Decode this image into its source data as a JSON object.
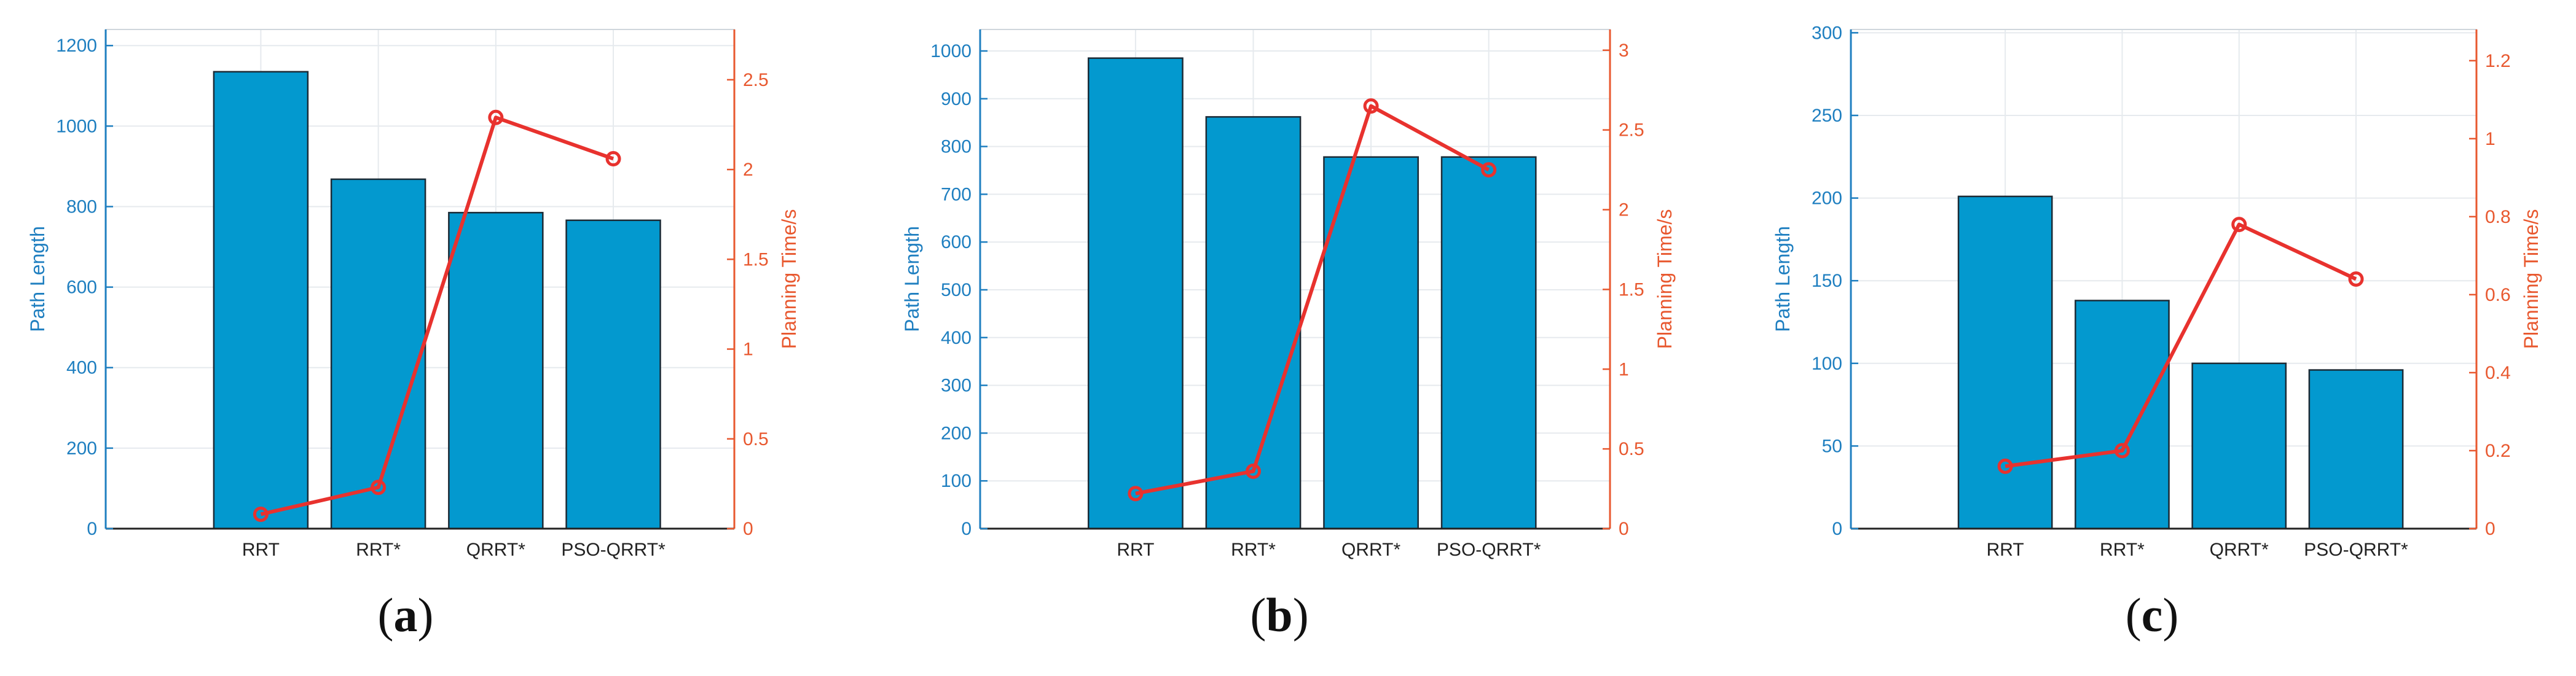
{
  "colors": {
    "bar_fill": "#0399cf",
    "bar_edge": "#1c2b36",
    "left_axis": "#1f7fc0",
    "right_axis": "#e8582f",
    "line": "#e8322e",
    "grid": "#e6eaee",
    "frame": "#222222"
  },
  "chart_data": [
    {
      "type": "bar",
      "panel_label": "a",
      "categories": [
        "RRT",
        "RRT*",
        "QRRT*",
        "PSO-QRRT*"
      ],
      "ylabel": "Path Length",
      "y2label": "Planning Time/s",
      "ylim": [
        0,
        1240
      ],
      "yticks": [
        0,
        200,
        400,
        600,
        800,
        1000,
        1200
      ],
      "y2lim": [
        0,
        2.78
      ],
      "y2ticks": [
        "0",
        "0.5",
        "1",
        "1.5",
        "2",
        "2.5"
      ],
      "y2tick_values": [
        0,
        0.5,
        1,
        1.5,
        2,
        2.5
      ],
      "series": [
        {
          "kind": "bar",
          "values": [
            1135,
            868,
            785,
            766
          ]
        },
        {
          "kind": "line",
          "axis": "right",
          "values": [
            0.08,
            0.23,
            2.29,
            2.06
          ]
        }
      ]
    },
    {
      "type": "bar",
      "panel_label": "b",
      "categories": [
        "RRT",
        "RRT*",
        "QRRT*",
        "PSO-QRRT*"
      ],
      "ylabel": "Path Length",
      "y2label": "Planning Time/s",
      "ylim": [
        0,
        1045
      ],
      "yticks": [
        0,
        100,
        200,
        300,
        400,
        500,
        600,
        700,
        800,
        900,
        1000
      ],
      "y2lim": [
        0,
        3.13
      ],
      "y2ticks": [
        "0",
        "0.5",
        "1",
        "1.5",
        "2",
        "2.5",
        "3"
      ],
      "y2tick_values": [
        0,
        0.5,
        1,
        1.5,
        2,
        2.5,
        3
      ],
      "series": [
        {
          "kind": "bar",
          "values": [
            985,
            862,
            778,
            778
          ]
        },
        {
          "kind": "line",
          "axis": "right",
          "values": [
            0.22,
            0.36,
            2.65,
            2.25
          ]
        }
      ]
    },
    {
      "type": "bar",
      "panel_label": "c",
      "categories": [
        "RRT",
        "RRT*",
        "QRRT*",
        "PSO-QRRT*"
      ],
      "ylabel": "Path Length",
      "y2label": "Planning Time/s",
      "ylim": [
        0,
        302
      ],
      "yticks": [
        0,
        50,
        100,
        150,
        200,
        250,
        300
      ],
      "y2lim": [
        0,
        1.28
      ],
      "y2ticks": [
        "0",
        "0.2",
        "0.4",
        "0.6",
        "0.8",
        "1",
        "1.2"
      ],
      "y2tick_values": [
        0,
        0.2,
        0.4,
        0.6,
        0.8,
        1.0,
        1.2
      ],
      "series": [
        {
          "kind": "bar",
          "values": [
            201,
            138,
            100,
            96
          ]
        },
        {
          "kind": "line",
          "axis": "right",
          "values": [
            0.16,
            0.2,
            0.78,
            0.64
          ]
        }
      ]
    }
  ]
}
